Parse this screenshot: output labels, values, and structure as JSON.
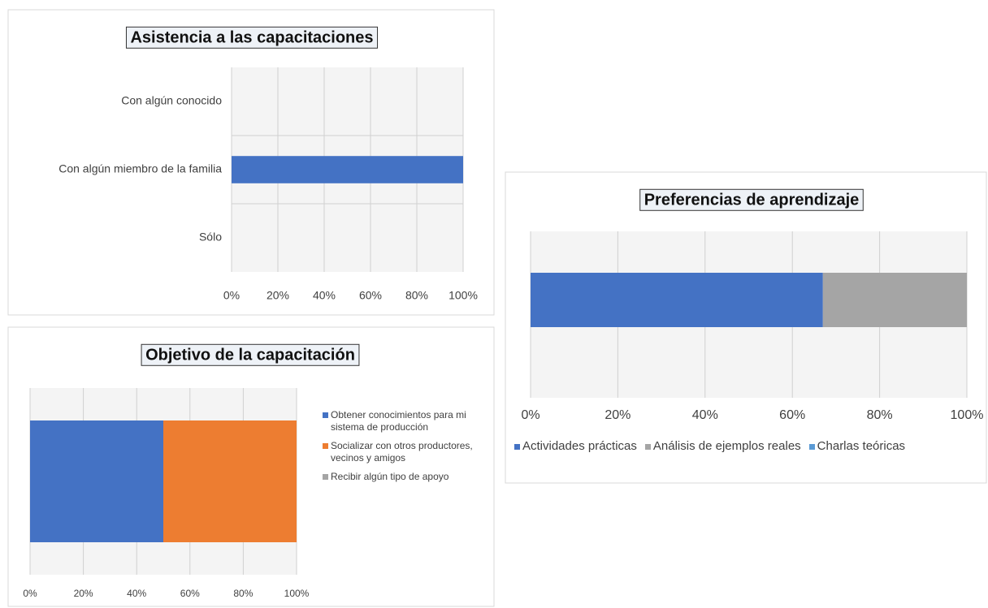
{
  "chart_data": [
    {
      "type": "bar",
      "orientation": "horizontal",
      "title": "Asistencia a las capacitaciones",
      "categories": [
        "Con algún conocido",
        "Con algún miembro de la familia",
        "Sólo"
      ],
      "values": [
        0,
        100,
        0
      ],
      "color": "#4472c4",
      "xlim": [
        0,
        100
      ],
      "xticks": [
        {
          "value": 0,
          "label": "0%"
        },
        {
          "value": 20,
          "label": "20%"
        },
        {
          "value": 40,
          "label": "40%"
        },
        {
          "value": 60,
          "label": "60%"
        },
        {
          "value": 80,
          "label": "80%"
        },
        {
          "value": 100,
          "label": "100%"
        }
      ],
      "grid": true
    },
    {
      "type": "bar",
      "orientation": "horizontal",
      "stacked": true,
      "title": "Objetivo de la capacitación",
      "series": [
        {
          "name": "Obtener conocimientos para mi sistema de producción",
          "color": "#4472c4",
          "values": [
            50
          ]
        },
        {
          "name": "Socializar con  otros productores, vecinos y amigos",
          "color": "#ed7d31",
          "values": [
            50
          ]
        },
        {
          "name": "Recibir algún tipo de apoyo",
          "color": "#a5a5a5",
          "values": [
            0
          ]
        }
      ],
      "xlim": [
        0,
        100
      ],
      "xticks": [
        {
          "value": 0,
          "label": "0%"
        },
        {
          "value": 20,
          "label": "20%"
        },
        {
          "value": 40,
          "label": "40%"
        },
        {
          "value": 60,
          "label": "60%"
        },
        {
          "value": 80,
          "label": "80%"
        },
        {
          "value": 100,
          "label": "100%"
        }
      ],
      "grid": true,
      "legend": "right"
    },
    {
      "type": "bar",
      "orientation": "horizontal",
      "stacked": true,
      "title": "Preferencias de aprendizaje",
      "series": [
        {
          "name": "Actividades prácticas",
          "color": "#4472c4",
          "values": [
            67
          ]
        },
        {
          "name": "Análisis de ejemplos reales",
          "color": "#a5a5a5",
          "values": [
            33
          ]
        },
        {
          "name": "Charlas teóricas",
          "color": "#5b9bd5",
          "values": [
            0
          ]
        }
      ],
      "xlim": [
        0,
        100
      ],
      "xticks": [
        {
          "value": 0,
          "label": "0%"
        },
        {
          "value": 20,
          "label": "20%"
        },
        {
          "value": 40,
          "label": "40%"
        },
        {
          "value": 60,
          "label": "60%"
        },
        {
          "value": 80,
          "label": "80%"
        },
        {
          "value": 100,
          "label": "100%"
        }
      ],
      "grid": true,
      "legend": "bottom"
    }
  ]
}
